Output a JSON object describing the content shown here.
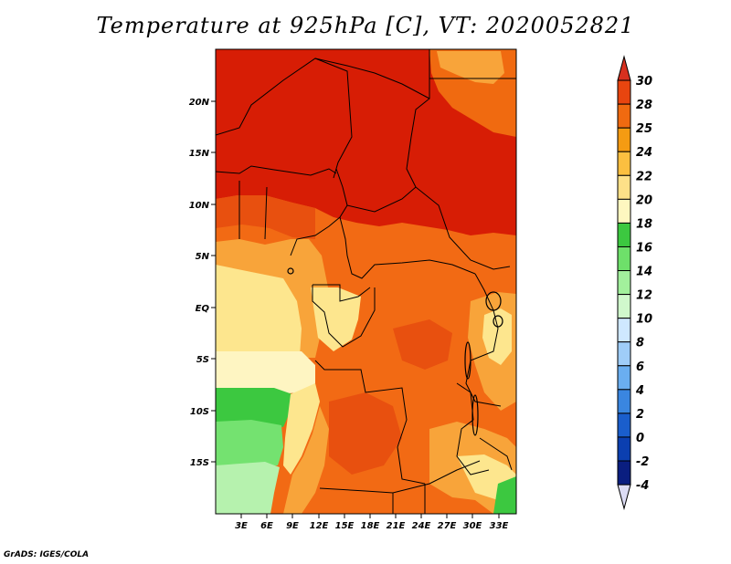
{
  "title": "Temperature at 925hPa [C], VT: 2020052821",
  "credit": "GrADS: IGES/COLA",
  "lat_ticks": [
    "20N",
    "15N",
    "10N",
    "5N",
    "EQ",
    "5S",
    "10S",
    "15S"
  ],
  "lon_ticks": [
    "3E",
    "6E",
    "9E",
    "12E",
    "15E",
    "18E",
    "21E",
    "24E",
    "27E",
    "30E",
    "33E"
  ],
  "colorbar": {
    "labels": [
      "30",
      "28",
      "25",
      "24",
      "22",
      "20",
      "18",
      "16",
      "14",
      "12",
      "10",
      "8",
      "6",
      "4",
      "2",
      "0",
      "-2",
      "-4"
    ],
    "colors": {
      "top_triangle": "#d7301f",
      "segments": [
        "#e8450f",
        "#f06a10",
        "#f59b12",
        "#fbbf40",
        "#fde088",
        "#fef7c0",
        "#3cc840",
        "#6ee06a",
        "#a2f09c",
        "#d0f8cc",
        "#cfe8ff",
        "#9fcdf8",
        "#6aaef0",
        "#3a86e0",
        "#1a5ecc",
        "#0b3fb0",
        "#0a1e80"
      ],
      "bottom_triangle": "#dcdcf4"
    }
  },
  "map_colors": {
    "hot": "#d71d05",
    "orange_red": "#e8500f",
    "orange": "#f26a14",
    "light_orange": "#f8a43a",
    "yellow": "#fde68e",
    "pale": "#fef5c2",
    "green": "#3cc840",
    "light_green": "#74e270",
    "pale_green": "#b6f2ae",
    "border": "#000000"
  }
}
